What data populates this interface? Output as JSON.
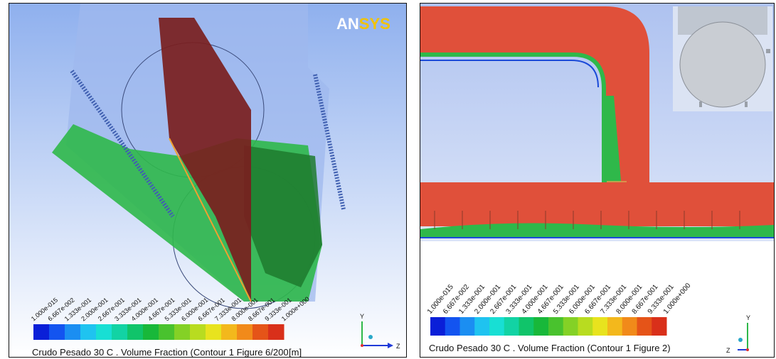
{
  "left_panel": {
    "logo_prefix": "AN",
    "logo_suffix": "SYS",
    "legend_title": "Crudo  Pesado  30  C . Volume  Fraction  (Contour  1  Figure  6/200",
    "unit": "[m]",
    "ticks": [
      "1.000e-015",
      "6.667e-002",
      "1.333e-001",
      "2.000e-001",
      "2.667e-001",
      "3.333e-001",
      "4.000e-001",
      "4.667e-001",
      "5.333e-001",
      "6.000e-001",
      "6.667e-001",
      "7.333e-001",
      "8.000e-001",
      "8.667e-001",
      "9.333e-001",
      "1.000e+000"
    ],
    "axis_y": "Y",
    "axis_z": "Z"
  },
  "right_panel": {
    "legend_title": "Crudo  Pesado  30  C . Volume  Fraction  (Contour  1  Figure  2)",
    "ticks": [
      "1.000e-015",
      "6.667e-002",
      "1.333e-001",
      "2.000e-001",
      "2.667e-001",
      "3.333e-001",
      "4.000e-001",
      "4.667e-001",
      "5.333e-001",
      "6.000e-001",
      "6.667e-001",
      "7.333e-001",
      "8.000e-001",
      "8.667e-001",
      "9.333e-001",
      "1.000e+000"
    ],
    "axis_y": "Y",
    "axis_z": "Z"
  },
  "colors": {
    "legend": [
      "#0a1fd8",
      "#1354f0",
      "#1b8ef2",
      "#1fc3f0",
      "#18dfd4",
      "#12d3a4",
      "#10c46a",
      "#18b83a",
      "#49c22e",
      "#84d126",
      "#b8dc20",
      "#e8e31e",
      "#f3b81c",
      "#f18a1a",
      "#e55418",
      "#d9301a"
    ],
    "background": "#bccdf5",
    "fluid_red": "#e0503a",
    "fluid_green": "#2fb84a",
    "tank_blue": "#8ea9e8"
  }
}
